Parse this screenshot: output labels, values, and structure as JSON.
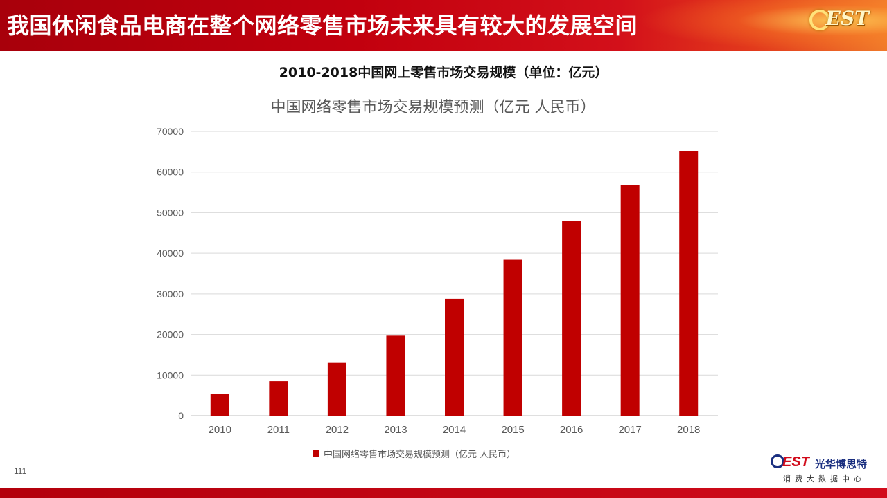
{
  "header": {
    "title": "我国休闲食品电商在整个网络零售市场未来具有较大的发展空间",
    "logo_text": "EST"
  },
  "subtitle": "2010-2018中国网上零售市场交易规模（单位：亿元）",
  "chart_data": {
    "type": "bar",
    "title": "中国网络零售市场交易规模预测（亿元 人民币）",
    "categories": [
      "2010",
      "2011",
      "2012",
      "2013",
      "2014",
      "2015",
      "2016",
      "2017",
      "2018"
    ],
    "series": [
      {
        "name": "中国网络零售市场交易规模预测（亿元 人民币）",
        "values": [
          5300,
          8500,
          13000,
          19700,
          28800,
          38400,
          47900,
          56800,
          65100
        ],
        "color": "#c00000"
      }
    ],
    "ylim": [
      0,
      70000
    ],
    "yticks": [
      "0",
      "10000",
      "20000",
      "30000",
      "40000",
      "50000",
      "60000",
      "70000"
    ],
    "grid": true,
    "legend": "bottom"
  },
  "footer": {
    "page_number": "111",
    "brand_mark_b": "B",
    "brand_mark_est": "EST",
    "brand_name": "光华博思特",
    "brand_tagline": "消费大数据中心"
  },
  "colors": {
    "header_red": "#c2000e",
    "bar": "#c00000",
    "brand_blue": "#1a2f80"
  }
}
